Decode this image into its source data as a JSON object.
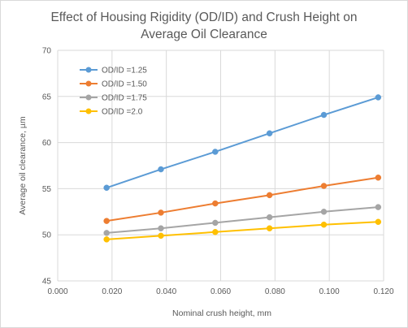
{
  "chart_data": {
    "type": "line",
    "title_line1": "Effect of Housing Rigidity (OD/ID) and Crush Height on",
    "title_line2": "Average Oil Clearance",
    "xlabel": "Nominal crush height, mm",
    "ylabel": "Average oil clearance, µm",
    "xlim": [
      0,
      0.12
    ],
    "ylim": [
      45,
      70
    ],
    "x_ticks": [
      0,
      0.02,
      0.04,
      0.06,
      0.08,
      0.1,
      0.12
    ],
    "x_tick_labels": [
      "0.000",
      "0.020",
      "0.040",
      "0.060",
      "0.080",
      "0.100",
      "0.120"
    ],
    "y_ticks": [
      45,
      50,
      55,
      60,
      65,
      70
    ],
    "y_tick_labels": [
      "45",
      "50",
      "55",
      "60",
      "65",
      "70"
    ],
    "grid": true,
    "legend_position": "top-left",
    "x": [
      0.018,
      0.038,
      0.058,
      0.078,
      0.098,
      0.118
    ],
    "series": [
      {
        "name": "OD/ID =1.25",
        "color": "#5b9bd5",
        "values": [
          55.1,
          57.1,
          59.0,
          61.0,
          63.0,
          64.9
        ]
      },
      {
        "name": "OD/ID =1.50",
        "color": "#ed7d31",
        "values": [
          51.5,
          52.4,
          53.4,
          54.3,
          55.3,
          56.2
        ]
      },
      {
        "name": "OD/ID =1.75",
        "color": "#a5a5a5",
        "values": [
          50.2,
          50.7,
          51.3,
          51.9,
          52.5,
          53.0
        ]
      },
      {
        "name": "OD/ID =2.0",
        "color": "#ffc000",
        "values": [
          49.5,
          49.9,
          50.3,
          50.7,
          51.1,
          51.4
        ]
      }
    ],
    "colors": {
      "gridline": "#d9d9d9",
      "text": "#595959"
    }
  }
}
